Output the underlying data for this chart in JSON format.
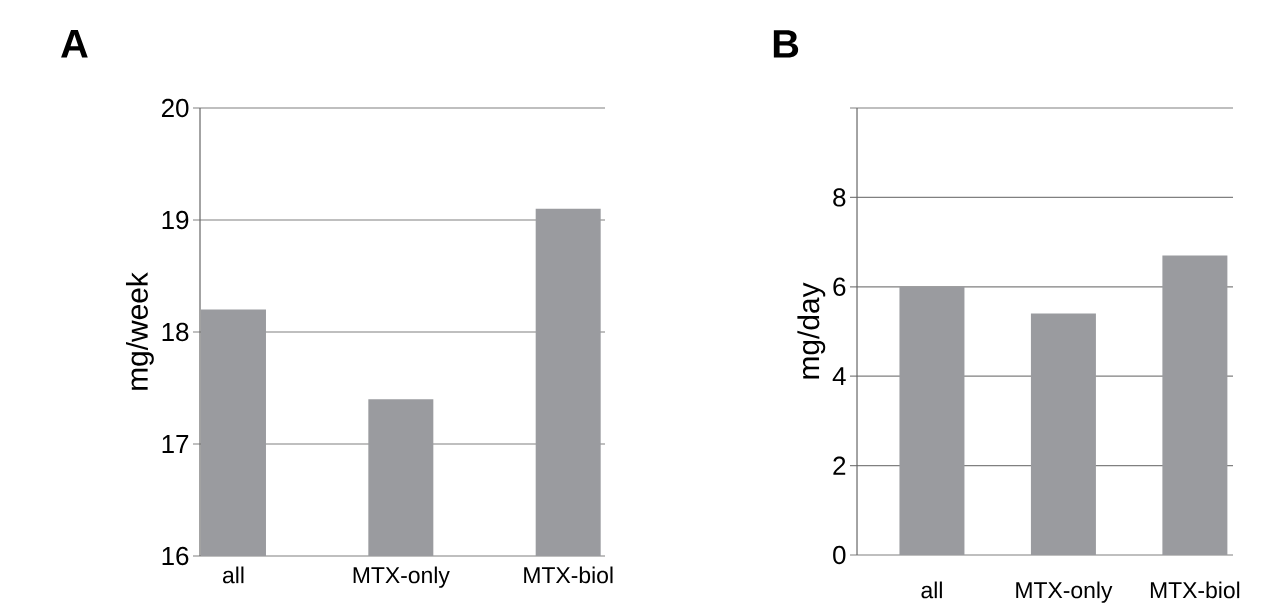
{
  "chart_data": [
    {
      "type": "bar",
      "title": "A",
      "ylabel": "mg/week",
      "categories": [
        "all",
        "MTX-only",
        "MTX-biol"
      ],
      "values": [
        18.2,
        17.4,
        19.1
      ],
      "color": "#9a9b9f",
      "ylim": [
        16,
        20
      ],
      "yticks": [
        16,
        17,
        18,
        19,
        20
      ],
      "grid": "y"
    },
    {
      "type": "bar",
      "title": "B",
      "ylabel": "mg/day",
      "categories": [
        "all",
        "MTX-only",
        "MTX-biol"
      ],
      "values": [
        6.0,
        5.4,
        6.7
      ],
      "color": "#9a9b9f",
      "ylim": [
        0,
        10
      ],
      "yticks": [
        0,
        2,
        4,
        6,
        8,
        {
          "value": 10,
          "label": null
        }
      ],
      "grid": "y"
    }
  ]
}
